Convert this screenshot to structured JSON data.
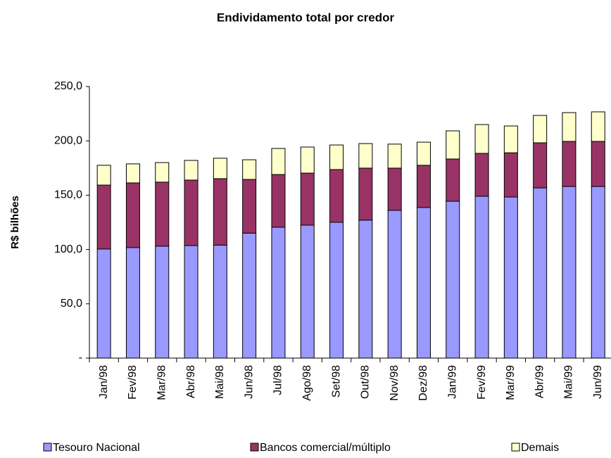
{
  "chart_data": {
    "type": "stacked-bar",
    "title": "Endividamento total por credor",
    "y_label": "R$ bilhões",
    "categories": [
      "Jan/98",
      "Fev/98",
      "Mar/98",
      "Abr/98",
      "Mai/98",
      "Jun/98",
      "Jul/98",
      "Ago/98",
      "Set/98",
      "Out/98",
      "Nov/98",
      "Dez/98",
      "Jan/99",
      "Fev/99",
      "Mar/99",
      "Abr/99",
      "Mai/99",
      "Jun/99"
    ],
    "series": [
      {
        "name": "Tesouro Nacional",
        "color": "#9999ff",
        "values": [
          100.4,
          101.7,
          103.0,
          103.6,
          104.0,
          115.0,
          120.5,
          122.4,
          125.0,
          127.0,
          136.0,
          138.6,
          144.4,
          149.0,
          148.3,
          156.7,
          158.0,
          158.0
        ]
      },
      {
        "name": "Bancos comercial/múltiplo",
        "color": "#993366",
        "values": [
          58.9,
          59.6,
          59.0,
          60.3,
          61.2,
          49.5,
          48.5,
          47.9,
          48.6,
          47.9,
          38.9,
          38.9,
          38.9,
          39.5,
          40.7,
          41.5,
          41.5,
          41.5
        ]
      },
      {
        "name": "Demais",
        "color": "#ffffcc",
        "values": [
          18.2,
          17.5,
          18.0,
          18.1,
          18.8,
          18.1,
          24.0,
          24.0,
          22.6,
          22.6,
          22.1,
          21.3,
          25.9,
          26.5,
          24.7,
          25.2,
          26.5,
          27.2
        ]
      }
    ],
    "ylim": [
      0,
      250
    ],
    "yticks": [
      {
        "value": 0,
        "label": "-"
      },
      {
        "value": 50,
        "label": "50,0"
      },
      {
        "value": 100,
        "label": "100,0"
      },
      {
        "value": 150,
        "label": "150,0"
      },
      {
        "value": 200,
        "label": "200,0"
      },
      {
        "value": 250,
        "label": "250,0"
      }
    ],
    "grid": false,
    "legend": "bottom"
  }
}
